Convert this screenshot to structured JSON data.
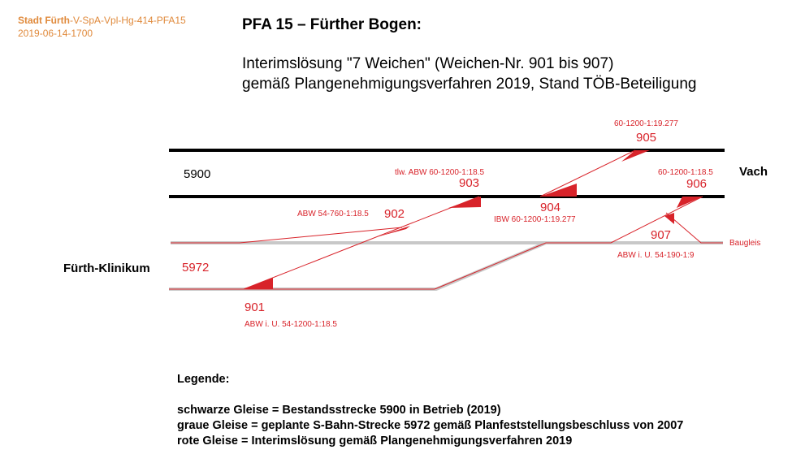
{
  "doc": {
    "org": "Stadt Fürth",
    "code": "-V-SpA-Vpl-Hg-414-PFA15",
    "date": "2019-06-14-1700"
  },
  "title": "PFA 15 – Fürther Bogen:",
  "subtitle_line1": "Interimslösung \"7 Weichen\" (Weichen-Nr. 901 bis 907)",
  "subtitle_line2": "gemäß Plangenehmigungsverfahren 2019, Stand TÖB-Beteiligung",
  "stations": {
    "left": "Fürth-Klinikum",
    "right": "Vach"
  },
  "tracks": {
    "existing": "5900",
    "planned": "5972",
    "construction_label": "Baugleis"
  },
  "switches": [
    {
      "id": "901",
      "spec": "ABW i. U. 54-1200-1:18.5"
    },
    {
      "id": "902",
      "spec": "ABW 54-760-1:18.5"
    },
    {
      "id": "903",
      "spec": "tlw. ABW 60-1200-1:18.5"
    },
    {
      "id": "904",
      "spec": "IBW 60-1200-1:19.277"
    },
    {
      "id": "905",
      "spec": "60-1200-1:19.277"
    },
    {
      "id": "906",
      "spec": "60-1200-1:18.5"
    },
    {
      "id": "907",
      "spec": "ABW i. U. 54-190-1:9"
    }
  ],
  "legend": {
    "title": "Legende:",
    "line1": "schwarze Gleise = Bestandsstrecke 5900 in Betrieb (2019)",
    "line2": "graue Gleise = geplante S-Bahn-Strecke 5972 gemäß Planfeststellungsbeschluss von 2007",
    "line3": "rote Gleise = Interimslösung gemäß Plangenehmigungsverfahren 2019"
  },
  "colors": {
    "existing": "#000000",
    "planned": "#c8c8c8",
    "interim": "#d8232a",
    "header": "#e08a3c"
  }
}
